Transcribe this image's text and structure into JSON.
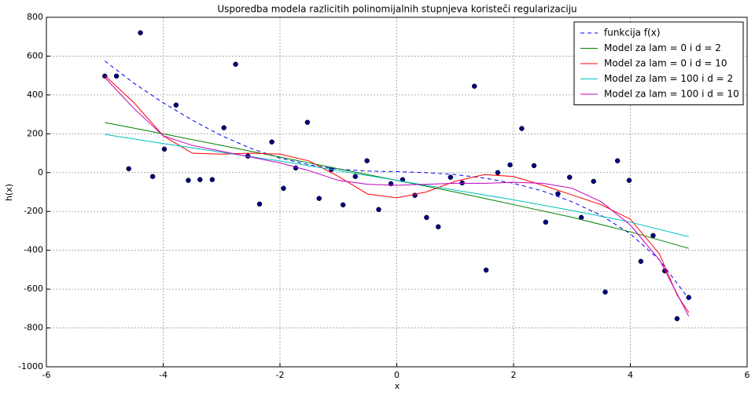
{
  "chart_data": {
    "type": "line",
    "title": "Usporedba modela razlicitih polinomijalnih stupnjeva koristeči regularizaciju",
    "xlabel": "x",
    "ylabel": "h(x)",
    "xlim": [
      -6,
      6
    ],
    "ylim": [
      -1000,
      800
    ],
    "xticks": [
      -6,
      -4,
      -2,
      0,
      2,
      4,
      6
    ],
    "yticks": [
      -1000,
      -800,
      -600,
      -400,
      -200,
      0,
      200,
      400,
      600,
      800
    ],
    "grid": true,
    "legend": "upper right",
    "series": [
      {
        "kind": "scatter",
        "color": "#000080",
        "x": [
          -5,
          -4.8,
          -4.59,
          -4.39,
          -4.18,
          -3.98,
          -3.78,
          -3.57,
          -3.37,
          -3.16,
          -2.96,
          -2.76,
          -2.55,
          -2.35,
          -2.14,
          -1.94,
          -1.73,
          -1.53,
          -1.33,
          -1.12,
          -0.92,
          -0.71,
          -0.51,
          -0.31,
          -0.1,
          0.1,
          0.31,
          0.51,
          0.71,
          0.92,
          1.12,
          1.33,
          1.53,
          1.73,
          1.94,
          2.14,
          2.35,
          2.55,
          2.76,
          2.96,
          3.16,
          3.37,
          3.57,
          3.78,
          3.98,
          4.18,
          4.39,
          4.59,
          4.8,
          5
        ],
        "values": [
          497,
          497,
          20,
          720,
          -20,
          121,
          348,
          -40,
          -36,
          -36,
          231,
          558,
          85,
          -162,
          158,
          -81,
          24,
          259,
          -133,
          16,
          -166,
          -20,
          61,
          -190,
          -57,
          -36,
          -117,
          -231,
          -279,
          -24,
          -53,
          445,
          -502,
          0,
          40,
          227,
          36,
          -255,
          -109,
          -24,
          -231,
          -45,
          -615,
          61,
          -40,
          -457,
          -324,
          -506,
          -752,
          -643
        ]
      },
      {
        "kind": "line",
        "dash": true,
        "name": "funkcija f(x)",
        "color": "#0000ff",
        "x": [
          -5,
          -4.5,
          -4,
          -3.5,
          -3,
          -2.5,
          -2,
          -1.5,
          -1,
          -0.5,
          0,
          0.5,
          1,
          1.5,
          2,
          2.5,
          3,
          3.5,
          4,
          4.5,
          5
        ],
        "values": [
          575,
          460,
          360,
          270,
          190,
          125,
          75,
          40,
          18,
          8,
          5,
          0,
          -10,
          -28,
          -55,
          -95,
          -150,
          -220,
          -315,
          -450,
          -650
        ]
      },
      {
        "kind": "line",
        "name": "Model za lam = 0 i d = 2",
        "color": "#008000",
        "x": [
          -5,
          -4,
          -3,
          -2,
          -1,
          0,
          1,
          2,
          3,
          4,
          5
        ],
        "values": [
          258,
          200,
          140,
          80,
          20,
          -40,
          -100,
          -165,
          -230,
          -305,
          -390
        ]
      },
      {
        "kind": "line",
        "name": "Model za lam = 0 i d = 10",
        "color": "#ff0000",
        "x": [
          -5,
          -4.5,
          -4,
          -3.5,
          -3,
          -2.5,
          -2,
          -1.5,
          -1,
          -0.5,
          0,
          0.5,
          1,
          1.5,
          2,
          2.5,
          3,
          3.5,
          4,
          4.5,
          4.8,
          5
        ],
        "values": [
          500,
          360,
          190,
          100,
          95,
          100,
          95,
          60,
          -20,
          -110,
          -130,
          -100,
          -45,
          -10,
          -20,
          -65,
          -115,
          -165,
          -240,
          -420,
          -630,
          -720
        ]
      },
      {
        "kind": "line",
        "name": "Model za lam = 100 i d = 2",
        "color": "#00bfbf",
        "x": [
          -5,
          -4,
          -3,
          -2,
          -1,
          0,
          1,
          2,
          3,
          4,
          5
        ],
        "values": [
          197,
          150,
          105,
          60,
          10,
          -40,
          -90,
          -140,
          -195,
          -255,
          -330
        ]
      },
      {
        "kind": "line",
        "name": "Model za lam = 100 i d = 10",
        "color": "#bf00bf",
        "x": [
          -5,
          -4.5,
          -4,
          -3.5,
          -3,
          -2.5,
          -2,
          -1.5,
          -1,
          -0.5,
          0,
          0.5,
          1,
          1.5,
          2,
          2.5,
          3,
          3.5,
          4,
          4.5,
          5
        ],
        "values": [
          490,
          330,
          190,
          140,
          110,
          80,
          50,
          10,
          -40,
          -60,
          -65,
          -60,
          -55,
          -55,
          -50,
          -55,
          -80,
          -150,
          -270,
          -450,
          -740
        ]
      }
    ]
  }
}
